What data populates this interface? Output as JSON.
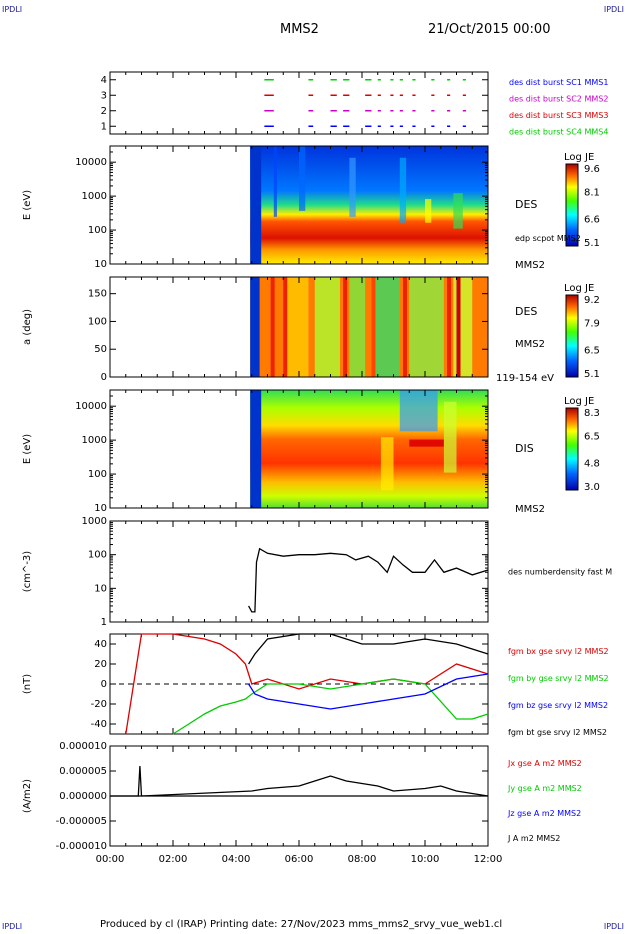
{
  "header": {
    "corner_label": "IPDLI",
    "spacecraft": "MMS2",
    "date": "21/Oct/2015 00:00"
  },
  "footer": {
    "text": "Produced by cl (IRAP)   Printing date: 27/Nov/2023   mms_mms2_srvy_vue_web1.cl"
  },
  "colors": {
    "c1": "#0000ff",
    "c2": "#cc00cc",
    "c3": "#dd0000",
    "c4": "#00cc00",
    "bx": "#dd0000",
    "by": "#00cc00",
    "bz": "#0000ff",
    "bt": "#000000"
  },
  "chart_data": [
    {
      "id": "burst",
      "type": "scatter",
      "ylabel": "",
      "yticks": [
        "1",
        "2",
        "3",
        "4"
      ],
      "ylim": [
        0.5,
        4.5
      ],
      "series": [
        {
          "name": "des dist burst SC1 MMS1",
          "y": 1,
          "color": "#0000ff"
        },
        {
          "name": "des dist burst SC2 MMS2",
          "y": 2,
          "color": "#cc00cc"
        },
        {
          "name": "des dist burst SC3 MMS3",
          "y": 3,
          "color": "#dd0000"
        },
        {
          "name": "des dist burst SC4 MMS4",
          "y": 4,
          "color": "#00cc00"
        }
      ],
      "intervals_hours": [
        [
          4.9,
          5.2
        ],
        [
          6.3,
          6.45
        ],
        [
          7.0,
          7.2
        ],
        [
          7.4,
          7.6
        ],
        [
          8.1,
          8.3
        ],
        [
          8.5,
          8.6
        ],
        [
          8.9,
          9.0
        ],
        [
          9.2,
          9.3
        ],
        [
          9.6,
          9.7
        ],
        [
          10.2,
          10.3
        ],
        [
          10.7,
          10.8
        ],
        [
          11.2,
          11.3
        ]
      ]
    },
    {
      "id": "des_energy",
      "type": "heatmap",
      "ylabel": "E (eV)",
      "yscale": "log",
      "yticks": [
        "10",
        "100",
        "1000",
        "10000"
      ],
      "ylim": [
        10,
        30000
      ],
      "label": "DES",
      "label2": "edp scpot MMS2",
      "sc_label": "MMS2",
      "colorbar": {
        "title": "Log JE",
        "ticks": [
          "9.6",
          "8.1",
          "6.6",
          "5.1"
        ]
      },
      "data_start_hours": 4.45
    },
    {
      "id": "des_pitch",
      "type": "heatmap",
      "ylabel": "a (deg)",
      "yticks": [
        "0",
        "50",
        "100",
        "150"
      ],
      "ylim": [
        0,
        180
      ],
      "label": "DES",
      "sc_label": "MMS2",
      "energy_range": "119-154 eV",
      "colorbar": {
        "title": "Log JE",
        "ticks": [
          "9.2",
          "7.9",
          "6.5",
          "5.1"
        ]
      },
      "data_start_hours": 4.45
    },
    {
      "id": "dis_energy",
      "type": "heatmap",
      "ylabel": "E (eV)",
      "yscale": "log",
      "yticks": [
        "10",
        "100",
        "1000",
        "10000"
      ],
      "ylim": [
        10,
        30000
      ],
      "label": "DIS",
      "sc_label": "MMS2",
      "colorbar": {
        "title": "Log JE",
        "ticks": [
          "8.3",
          "6.5",
          "4.8",
          "3.0"
        ]
      },
      "data_start_hours": 4.45
    },
    {
      "id": "density",
      "type": "line",
      "ylabel": "(cm^-3)",
      "yscale": "log",
      "yticks": [
        "1",
        "10",
        "100",
        "1000"
      ],
      "ylim": [
        1,
        1000
      ],
      "series": [
        {
          "name": "des numberdensity fast M",
          "color": "#000000",
          "x": [
            4.4,
            4.5,
            4.6,
            4.65,
            4.75,
            5.0,
            5.5,
            6.0,
            6.5,
            7.0,
            7.5,
            7.8,
            8.2,
            8.5,
            8.8,
            9.0,
            9.3,
            9.6,
            10.0,
            10.3,
            10.6,
            11.0,
            11.5,
            12.0
          ],
          "y": [
            3,
            2,
            2,
            60,
            150,
            110,
            90,
            100,
            100,
            110,
            100,
            70,
            90,
            60,
            30,
            90,
            50,
            30,
            30,
            70,
            30,
            40,
            25,
            35
          ]
        }
      ]
    },
    {
      "id": "fgm",
      "type": "line",
      "ylabel": "(nT)",
      "yticks": [
        "-40",
        "-20",
        "0",
        "20",
        "40"
      ],
      "ylim": [
        -50,
        50
      ],
      "series": [
        {
          "name": "fgm bx gse srvy l2 MMS2",
          "color": "#dd0000",
          "x": [
            0.5,
            0.8,
            1.0,
            2.0,
            3.0,
            3.5,
            4.0,
            4.3,
            4.5,
            5.0,
            5.5,
            6.0,
            7.0,
            8.0,
            9.0,
            10.0,
            11.0,
            12.0
          ],
          "y": [
            -50,
            10,
            50,
            50,
            45,
            40,
            30,
            20,
            0,
            5,
            0,
            -5,
            5,
            0,
            5,
            0,
            20,
            10
          ]
        },
        {
          "name": "fgm by gse srvy l2 MMS2",
          "color": "#00cc00",
          "x": [
            2.0,
            2.5,
            3.0,
            3.5,
            4.0,
            4.3,
            4.5,
            5.0,
            6.0,
            7.0,
            8.0,
            9.0,
            10.0,
            11.0,
            11.5,
            12.0
          ],
          "y": [
            -50,
            -40,
            -30,
            -22,
            -18,
            -15,
            -10,
            0,
            0,
            -5,
            0,
            5,
            0,
            -35,
            -35,
            -30
          ]
        },
        {
          "name": "fgm bz gse srvy l2 MMS2",
          "color": "#0000ff",
          "x": [
            4.4,
            4.6,
            5.0,
            6.0,
            7.0,
            8.0,
            9.0,
            10.0,
            11.0,
            12.0
          ],
          "y": [
            0,
            -10,
            -15,
            -20,
            -25,
            -20,
            -15,
            -10,
            5,
            10
          ]
        },
        {
          "name": "fgm bt gse srvy l2 MMS2",
          "color": "#000000",
          "x": [
            4.4,
            4.6,
            5.0,
            6.0,
            7.0,
            8.0,
            9.0,
            10.0,
            11.0,
            12.0
          ],
          "y": [
            20,
            30,
            45,
            50,
            50,
            40,
            40,
            45,
            40,
            30
          ]
        }
      ]
    },
    {
      "id": "currents",
      "type": "line",
      "ylabel": "(A/m2)",
      "yticks": [
        "-0.000010",
        "-0.000005",
        "0.000000",
        "0.000005",
        "0.000010"
      ],
      "ylim": [
        -1e-05,
        1e-05
      ],
      "series": [
        {
          "name": "Jx gse A m2 MMS2",
          "color": "#dd0000"
        },
        {
          "name": "Jy gse A m2 MMS2",
          "color": "#00cc00"
        },
        {
          "name": "Jz gse A m2 MMS2",
          "color": "#0000ff"
        },
        {
          "name": "J A m2 MMS2",
          "color": "#000000",
          "x": [
            0,
            0.9,
            0.95,
            1.0,
            4.5,
            5.0,
            6.0,
            6.5,
            7.0,
            7.5,
            8.0,
            8.5,
            9.0,
            10.0,
            10.5,
            11.0,
            12.0
          ],
          "y": [
            0,
            0,
            6e-06,
            0,
            1e-06,
            1.5e-06,
            2e-06,
            3e-06,
            4e-06,
            3e-06,
            2.5e-06,
            2e-06,
            1e-06,
            1.5e-06,
            2e-06,
            1e-06,
            0
          ]
        }
      ]
    }
  ],
  "time_axis": {
    "ticks": [
      "00:00",
      "02:00",
      "04:00",
      "06:00",
      "08:00",
      "10:00",
      "12:00"
    ]
  }
}
